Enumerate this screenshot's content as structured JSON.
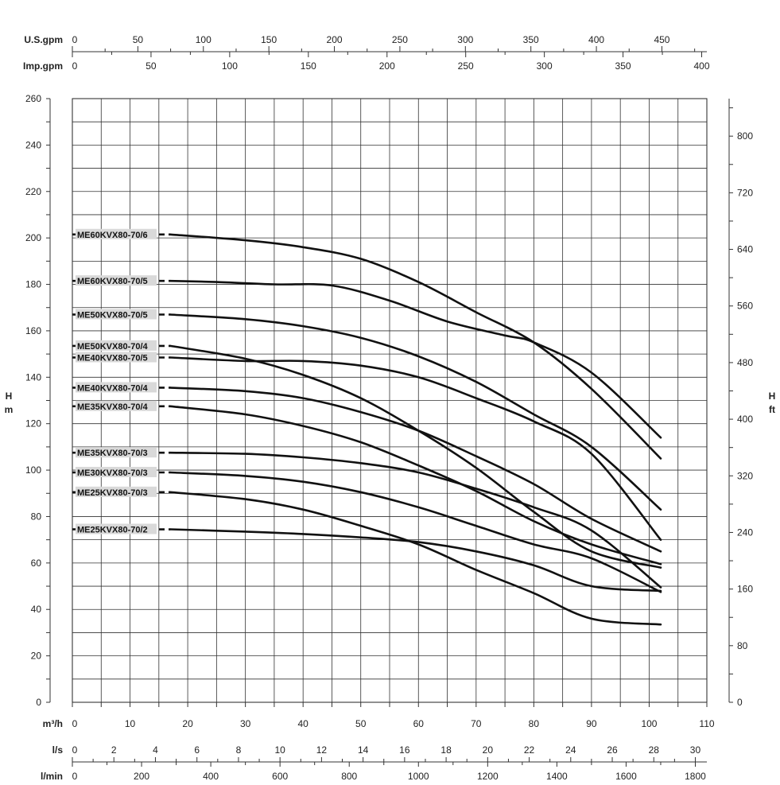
{
  "chart_data": {
    "type": "line",
    "title": "",
    "x_axes": [
      {
        "label": "U.S.gpm",
        "ticks": [
          "0",
          "50",
          "100",
          "150",
          "200",
          "250",
          "300",
          "350",
          "400",
          "450"
        ]
      },
      {
        "label": "Imp.gpm",
        "ticks": [
          "0",
          "50",
          "100",
          "150",
          "200",
          "250",
          "300",
          "350",
          "400"
        ]
      },
      {
        "label": "m³/h",
        "ticks": [
          "0",
          "10",
          "20",
          "30",
          "40",
          "50",
          "60",
          "70",
          "80",
          "90",
          "100",
          "110"
        ]
      },
      {
        "label": "l/s",
        "ticks": [
          "0",
          "2",
          "4",
          "6",
          "8",
          "10",
          "12",
          "14",
          "16",
          "18",
          "20",
          "22",
          "24",
          "26",
          "28",
          "30"
        ]
      },
      {
        "label": "l/min",
        "ticks": [
          "0",
          "200",
          "400",
          "600",
          "800",
          "1000",
          "1200",
          "1400",
          "1600",
          "1800"
        ]
      }
    ],
    "y_left": {
      "label_top": "H",
      "label_bottom": "m",
      "ticks": [
        "0",
        "20",
        "40",
        "60",
        "80",
        "100",
        "120",
        "140",
        "160",
        "180",
        "200",
        "220",
        "240",
        "260"
      ],
      "ylim": [
        0,
        260
      ]
    },
    "y_right": {
      "label_top": "H",
      "label_bottom": "ft",
      "ticks": [
        "0",
        "80",
        "160",
        "240",
        "320",
        "400",
        "480",
        "560",
        "640",
        "720",
        "800"
      ]
    },
    "xlim": [
      0,
      110
    ],
    "grid": true,
    "series": [
      {
        "name": "ME60KVX80-70/6",
        "x": [
          17,
          30,
          40,
          50,
          60,
          70,
          80,
          90,
          102
        ],
        "y": [
          201.5,
          199,
          196,
          191,
          181,
          168,
          155,
          135,
          105
        ]
      },
      {
        "name": "ME60KVX80-70/5",
        "x": [
          17,
          25,
          35,
          45,
          55,
          65,
          75,
          80,
          90,
          102
        ],
        "y": [
          181.5,
          181,
          180,
          179.5,
          173,
          164,
          158,
          155,
          142,
          114
        ]
      },
      {
        "name": "ME50KVX80-70/5",
        "x": [
          17,
          30,
          40,
          50,
          60,
          70,
          80,
          90,
          102
        ],
        "y": [
          167,
          165,
          162,
          157,
          149,
          138,
          124,
          110,
          83
        ]
      },
      {
        "name": "ME50KVX80-70/4",
        "x": [
          17,
          30,
          40,
          50,
          60,
          70,
          80,
          90,
          102
        ],
        "y": [
          153.5,
          148,
          141,
          131,
          117,
          101,
          82,
          65,
          58
        ]
      },
      {
        "name": "ME40KVX80-70/5",
        "x": [
          17,
          30,
          40,
          50,
          60,
          70,
          80,
          90,
          102
        ],
        "y": [
          148.5,
          147,
          147,
          145,
          140,
          131,
          121,
          107,
          70
        ]
      },
      {
        "name": "ME40KVX80-70/4",
        "x": [
          17,
          30,
          40,
          50,
          60,
          70,
          80,
          90,
          102
        ],
        "y": [
          135.5,
          134,
          131,
          125,
          117,
          106,
          94,
          79,
          65
        ]
      },
      {
        "name": "ME35KVX80-70/4",
        "x": [
          17,
          30,
          40,
          50,
          60,
          70,
          80,
          90,
          102
        ],
        "y": [
          127.5,
          124,
          119,
          112,
          102,
          91,
          78,
          68,
          59.5
        ]
      },
      {
        "name": "ME35KVX80-70/3",
        "x": [
          17,
          30,
          40,
          50,
          60,
          70,
          80,
          90,
          102
        ],
        "y": [
          107.5,
          107,
          105.5,
          103,
          99,
          92,
          84,
          74,
          49.5
        ]
      },
      {
        "name": "ME30KVX80-70/3",
        "x": [
          17,
          30,
          40,
          50,
          60,
          70,
          80,
          90,
          102
        ],
        "y": [
          99,
          97.5,
          95,
          90.5,
          84,
          76,
          68,
          62,
          47.5
        ]
      },
      {
        "name": "ME25KVX80-70/3",
        "x": [
          17,
          30,
          40,
          50,
          60,
          70,
          80,
          90,
          102
        ],
        "y": [
          90.5,
          87.5,
          83,
          76,
          68,
          57,
          47,
          36,
          33.5
        ]
      },
      {
        "name": "ME25KVX80-70/2",
        "x": [
          17,
          30,
          40,
          50,
          60,
          70,
          80,
          90,
          102
        ],
        "y": [
          74.5,
          73.5,
          72.5,
          71,
          69,
          65,
          59,
          50,
          48
        ]
      }
    ]
  }
}
